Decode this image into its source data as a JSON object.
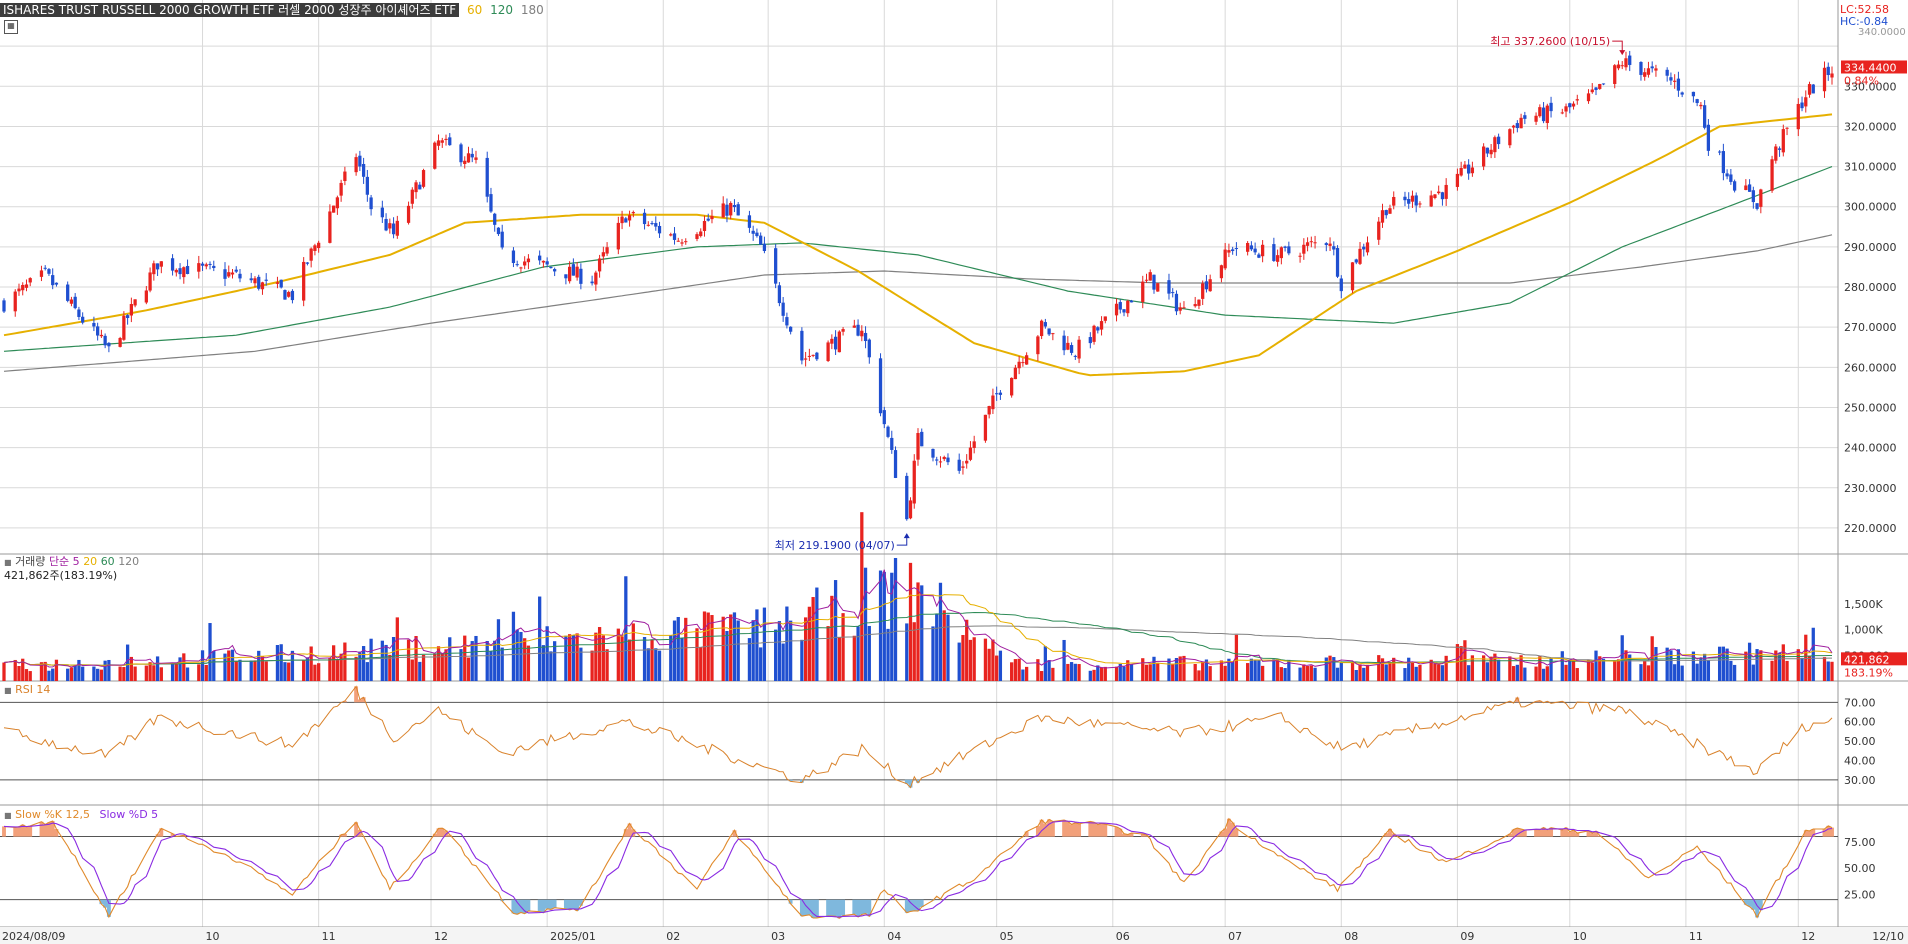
{
  "header": {
    "title": "ISHARES TRUST RUSSELL 2000 GROWTH ETF  러셀 2000 성장주 아이셰어즈 ETF",
    "ma_labels": [
      "60",
      "120",
      "180"
    ],
    "lc": "LC:52.58",
    "hc": "HC:-0.84",
    "top_cut": "340.0000"
  },
  "price_panel": {
    "current_price": "334.4400",
    "current_change": "0.84%",
    "high_annotation": "최고 337.2600 (10/15)",
    "low_annotation": "최저 219.1900 (04/07)",
    "y_ticks": [
      "330.0000",
      "320.0000",
      "310.0000",
      "300.0000",
      "290.0000",
      "280.0000",
      "270.0000",
      "260.0000",
      "250.0000",
      "240.0000",
      "230.0000",
      "220.0000"
    ]
  },
  "volume_panel": {
    "title": "거래량",
    "ma_title": "단순 5",
    "ma_labels": [
      "20",
      "60",
      "120"
    ],
    "subtitle": "421,862주(183.19%)",
    "current_value": "421,862",
    "current_pct": "183.19%",
    "y_ticks": [
      "1,500K",
      "1,000K",
      "500,000"
    ]
  },
  "rsi_panel": {
    "title": "RSI 14",
    "y_ticks": [
      "70.00",
      "60.00",
      "50.00",
      "40.00",
      "30.00"
    ]
  },
  "stoch_panel": {
    "title_k": "Slow %K 12,5",
    "title_d": "Slow %D 5",
    "y_ticks": [
      "75.00",
      "50.00",
      "25.00"
    ]
  },
  "x_axis": {
    "labels": [
      "2024/08/09",
      "10",
      "11",
      "12",
      "2025/01",
      "02",
      "03",
      "04",
      "05",
      "06",
      "07",
      "08",
      "09",
      "10",
      "11",
      "12",
      "12/10"
    ]
  },
  "colors": {
    "up": "#e8231f",
    "down": "#1f4fd0",
    "ma60": "#e6b000",
    "ma120": "#2e8b57",
    "ma180": "#808080",
    "grid": "#d9d9d9",
    "rsi": "#d9822b",
    "stoch_k": "#e08a2b",
    "stoch_d": "#8a2be2"
  },
  "chart_data": {
    "type": "candlestick",
    "date_range": [
      "2024/08/09",
      "2025/12/10"
    ],
    "month_ticks": [
      "2024/08/09",
      "2024/10",
      "2024/11",
      "2024/12",
      "2025/01",
      "2025/02",
      "2025/03",
      "2025/04",
      "2025/05",
      "2025/06",
      "2025/07",
      "2025/08",
      "2025/09",
      "2025/10",
      "2025/11",
      "2025/12",
      "2025/12/10"
    ],
    "price_anchors": [
      [
        "2024/08/09",
        276
      ],
      [
        "2024/08/20",
        283
      ],
      [
        "2024/09/06",
        264
      ],
      [
        "2024/09/19",
        286
      ],
      [
        "2024/10/09",
        283
      ],
      [
        "2024/10/25",
        278
      ],
      [
        "2024/11/11",
        313
      ],
      [
        "2024/11/15",
        300
      ],
      [
        "2024/11/21",
        293
      ],
      [
        "2024/12/03",
        316
      ],
      [
        "2024/12/13",
        311
      ],
      [
        "2024/12/20",
        288
      ],
      [
        "2025/01/13",
        282
      ],
      [
        "2025/01/22",
        298
      ],
      [
        "2025/02/05",
        292
      ],
      [
        "2025/02/19",
        300
      ],
      [
        "2025/02/27",
        290
      ],
      [
        "2025/03/10",
        262
      ],
      [
        "2025/03/26",
        270
      ],
      [
        "2025/04/07",
        222
      ],
      [
        "2025/04/10",
        242
      ],
      [
        "2025/04/21",
        234
      ],
      [
        "2025/05/02",
        255
      ],
      [
        "2025/05/13",
        270
      ],
      [
        "2025/05/22",
        264
      ],
      [
        "2025/06/11",
        282
      ],
      [
        "2025/06/20",
        274
      ],
      [
        "2025/07/03",
        290
      ],
      [
        "2025/07/16",
        288
      ],
      [
        "2025/07/29",
        292
      ],
      [
        "2025/08/01",
        281
      ],
      [
        "2025/08/13",
        300
      ],
      [
        "2025/08/29",
        304
      ],
      [
        "2025/09/18",
        322
      ],
      [
        "2025/09/30",
        324
      ],
      [
        "2025/10/08",
        328
      ],
      [
        "2025/10/15",
        336
      ],
      [
        "2025/10/21",
        334
      ],
      [
        "2025/10/29",
        331
      ],
      [
        "2025/11/05",
        325
      ],
      [
        "2025/11/07",
        316
      ],
      [
        "2025/11/14",
        306
      ],
      [
        "2025/11/20",
        301
      ],
      [
        "2025/11/24",
        312
      ],
      [
        "2025/12/03",
        328
      ],
      [
        "2025/12/10",
        334.44
      ]
    ],
    "ma60": [
      [
        "2024/08/09",
        268
      ],
      [
        "2024/09/15",
        274
      ],
      [
        "2024/10/20",
        281
      ],
      [
        "2024/11/20",
        288
      ],
      [
        "2024/12/10",
        296
      ],
      [
        "2025/01/10",
        298
      ],
      [
        "2025/02/10",
        298
      ],
      [
        "2025/02/28",
        296
      ],
      [
        "2025/03/25",
        284
      ],
      [
        "2025/04/25",
        266
      ],
      [
        "2025/05/25",
        258
      ],
      [
        "2025/06/20",
        259
      ],
      [
        "2025/07/10",
        263
      ],
      [
        "2025/08/05",
        279
      ],
      [
        "2025/09/01",
        289
      ],
      [
        "2025/10/01",
        301
      ],
      [
        "2025/10/25",
        312
      ],
      [
        "2025/11/10",
        320
      ],
      [
        "2025/12/10",
        323
      ]
    ],
    "ma120": [
      [
        "2024/08/09",
        264
      ],
      [
        "2024/10/10",
        268
      ],
      [
        "2024/11/20",
        275
      ],
      [
        "2024/12/31",
        285
      ],
      [
        "2025/02/10",
        290
      ],
      [
        "2025/03/10",
        291
      ],
      [
        "2025/04/10",
        288
      ],
      [
        "2025/05/20",
        279
      ],
      [
        "2025/07/01",
        273
      ],
      [
        "2025/08/15",
        271
      ],
      [
        "2025/09/15",
        276
      ],
      [
        "2025/10/15",
        290
      ],
      [
        "2025/11/15",
        301
      ],
      [
        "2025/12/10",
        310
      ]
    ],
    "ma180": [
      [
        "2024/08/09",
        259
      ],
      [
        "2024/10/15",
        264
      ],
      [
        "2024/12/01",
        271
      ],
      [
        "2025/01/15",
        277
      ],
      [
        "2025/02/28",
        283
      ],
      [
        "2025/04/01",
        284
      ],
      [
        "2025/05/10",
        282
      ],
      [
        "2025/06/15",
        281
      ],
      [
        "2025/08/01",
        281
      ],
      [
        "2025/09/15",
        281
      ],
      [
        "2025/10/20",
        285
      ],
      [
        "2025/11/20",
        289
      ],
      [
        "2025/12/10",
        293
      ]
    ],
    "volume_anchors": [
      [
        "2024/08/09",
        300
      ],
      [
        "2024/11/11",
        600
      ],
      [
        "2025/03/03",
        1100
      ],
      [
        "2025/04/07",
        1900
      ],
      [
        "2025/04/09",
        1850
      ],
      [
        "2025/05/05",
        350
      ],
      [
        "2025/09/15",
        400
      ],
      [
        "2025/11/25",
        580
      ],
      [
        "2025/12/10",
        421.862
      ]
    ],
    "rsi_anchors": [
      [
        "2024/08/09",
        55
      ],
      [
        "2024/09/06",
        42
      ],
      [
        "2024/09/19",
        62
      ],
      [
        "2024/10/25",
        48
      ],
      [
        "2024/11/11",
        76
      ],
      [
        "2024/11/21",
        52
      ],
      [
        "2024/12/03",
        66
      ],
      [
        "2024/12/20",
        44
      ],
      [
        "2025/01/22",
        60
      ],
      [
        "2025/03/10",
        30
      ],
      [
        "2025/03/26",
        46
      ],
      [
        "2025/04/07",
        28
      ],
      [
        "2025/05/13",
        62
      ],
      [
        "2025/06/20",
        54
      ],
      [
        "2025/07/16",
        62
      ],
      [
        "2025/08/01",
        46
      ],
      [
        "2025/09/18",
        70
      ],
      [
        "2025/10/15",
        66
      ],
      [
        "2025/11/20",
        34
      ],
      [
        "2025/12/03",
        58
      ],
      [
        "2025/12/10",
        61
      ]
    ],
    "stoch_k_anchors": [
      [
        "2024/08/09",
        88
      ],
      [
        "2024/08/22",
        95
      ],
      [
        "2024/09/06",
        5
      ],
      [
        "2024/09/20",
        88
      ],
      [
        "2024/10/09",
        60
      ],
      [
        "2024/10/25",
        25
      ],
      [
        "2024/11/11",
        96
      ],
      [
        "2024/11/20",
        30
      ],
      [
        "2024/12/04",
        90
      ],
      [
        "2024/12/23",
        8
      ],
      [
        "2025/01/10",
        12
      ],
      [
        "2025/01/23",
        92
      ],
      [
        "2025/02/10",
        30
      ],
      [
        "2025/02/20",
        85
      ],
      [
        "2025/03/10",
        4
      ],
      [
        "2025/03/28",
        5
      ],
      [
        "2025/04/01",
        30
      ],
      [
        "2025/04/07",
        6
      ],
      [
        "2025/04/25",
        40
      ],
      [
        "2025/05/13",
        95
      ],
      [
        "2025/05/27",
        92
      ],
      [
        "2025/06/10",
        80
      ],
      [
        "2025/06/20",
        35
      ],
      [
        "2025/07/02",
        95
      ],
      [
        "2025/07/16",
        60
      ],
      [
        "2025/07/31",
        30
      ],
      [
        "2025/08/14",
        85
      ],
      [
        "2025/08/29",
        55
      ],
      [
        "2025/09/18",
        88
      ],
      [
        "2025/10/08",
        85
      ],
      [
        "2025/10/22",
        40
      ],
      [
        "2025/11/04",
        70
      ],
      [
        "2025/11/20",
        5
      ],
      [
        "2025/12/03",
        85
      ],
      [
        "2025/12/10",
        90
      ]
    ],
    "thresholds": {
      "rsi": [
        70,
        30
      ],
      "stoch": [
        80,
        20
      ]
    }
  }
}
